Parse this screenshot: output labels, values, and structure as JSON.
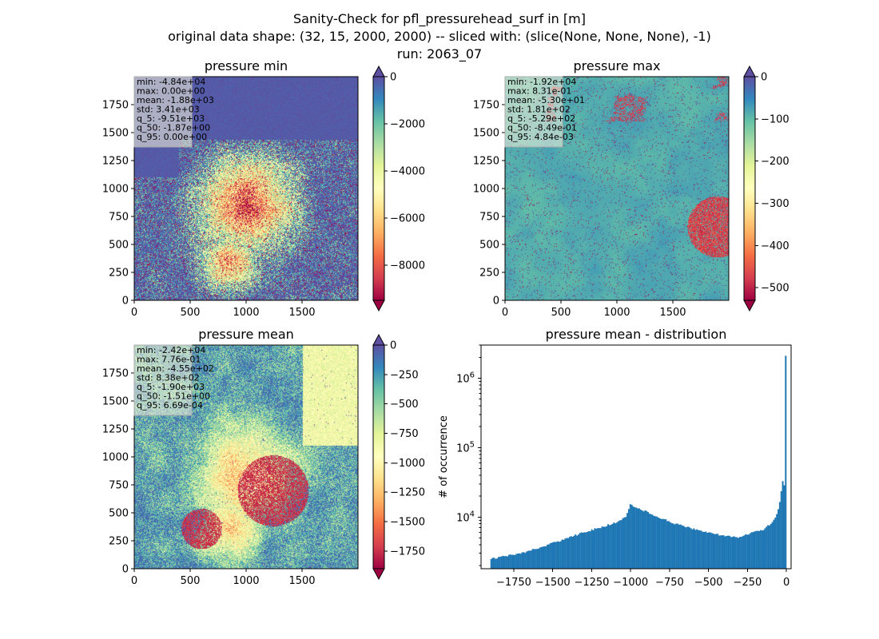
{
  "suptitle": [
    "Sanity-Check for pfl_pressurehead_surf in [m]",
    "original data shape: (32, 15, 2000, 2000) -- sliced with: (slice(None, None, None), -1)",
    "run: 2063_07"
  ],
  "colors": {
    "spectral_low": "#9e0142",
    "spectral_high": "#5e4fa2",
    "hist_bar": "#1f77b4",
    "statbox_bg": "#f5f5dc"
  },
  "chart_data": [
    {
      "type": "heatmap",
      "title": "pressure min",
      "colormap": "Spectral",
      "extend": "both",
      "xlim": [
        0,
        2000
      ],
      "ylim": [
        0,
        2000
      ],
      "x_ticks": [
        "0",
        "500",
        "1000",
        "1500"
      ],
      "y_ticks": [
        "0",
        "250",
        "500",
        "750",
        "1000",
        "1250",
        "1500",
        "1750"
      ],
      "vmin": -9500,
      "vmax": 0,
      "colorbar_ticks": [
        "0",
        "−2000",
        "−4000",
        "−6000",
        "−8000"
      ],
      "colorbar_tick_values": [
        0,
        -2000,
        -4000,
        -6000,
        -8000
      ],
      "stats": [
        "min: -4.84e+04",
        "max: 0.00e+00",
        "mean: -1.88e+03",
        "std: 3.41e+03",
        "q_5: -9.51e+03",
        "q_50: -1.87e+00",
        "q_95: 0.00e+00"
      ]
    },
    {
      "type": "heatmap",
      "title": "pressure max",
      "colormap": "Spectral",
      "extend": "both",
      "xlim": [
        0,
        2000
      ],
      "ylim": [
        0,
        2000
      ],
      "x_ticks": [
        "0",
        "500",
        "1000",
        "1500"
      ],
      "y_ticks": [
        "0",
        "250",
        "500",
        "750",
        "1000",
        "1250",
        "1500",
        "1750"
      ],
      "vmin": -530,
      "vmax": 0,
      "colorbar_ticks": [
        "0",
        "−100",
        "−200",
        "−300",
        "−400",
        "−500"
      ],
      "colorbar_tick_values": [
        0,
        -100,
        -200,
        -300,
        -400,
        -500
      ],
      "stats": [
        "min: -1.92e+04",
        "max: 8.31e-01",
        "mean: -5.30e+01",
        "std: 1.81e+02",
        "q_5: -5.29e+02",
        "q_50: -8.49e-01",
        "q_95: 4.84e-03"
      ]
    },
    {
      "type": "heatmap",
      "title": "pressure mean",
      "colormap": "Spectral",
      "extend": "both",
      "xlim": [
        0,
        2000
      ],
      "ylim": [
        0,
        2000
      ],
      "x_ticks": [
        "0",
        "500",
        "1000",
        "1500"
      ],
      "y_ticks": [
        "0",
        "250",
        "500",
        "750",
        "1000",
        "1250",
        "1500",
        "1750"
      ],
      "vmin": -1900,
      "vmax": 0,
      "colorbar_ticks": [
        "0",
        "−250",
        "−500",
        "−750",
        "−1000",
        "−1250",
        "−1500",
        "−1750"
      ],
      "colorbar_tick_values": [
        0,
        -250,
        -500,
        -750,
        -1000,
        -1250,
        -1500,
        -1750
      ],
      "stats": [
        "min: -2.42e+04",
        "max: 7.76e-01",
        "mean: -4.55e+02",
        "std: 8.38e+02",
        "q_5: -1.90e+03",
        "q_50: -1.51e+00",
        "q_95: 6.69e-04"
      ]
    },
    {
      "type": "bar",
      "title": "pressure mean - distribution",
      "ylabel": "# of occurrence",
      "yscale": "log",
      "xlim": [
        -1960,
        30
      ],
      "ylim": [
        1800,
        3000000
      ],
      "x_ticks": [
        "−1750",
        "−1500",
        "−1250",
        "−1000",
        "−750",
        "−500",
        "−250",
        "0"
      ],
      "x_tick_values": [
        -1750,
        -1500,
        -1250,
        -1000,
        -750,
        -500,
        -250,
        0
      ],
      "y_ticks": [
        "10^4",
        "10^5",
        "10^6"
      ],
      "y_tick_values": [
        10000,
        100000,
        1000000
      ],
      "bin_range": [
        -1900,
        0
      ],
      "profile_x": [
        -1900,
        -1700,
        -1500,
        -1300,
        -1100,
        -1030,
        -1000,
        -980,
        -900,
        -800,
        -700,
        -600,
        -500,
        -400,
        -300,
        -250,
        -150,
        -100,
        -60,
        -40,
        -25,
        -15,
        -8,
        -4,
        -2,
        0
      ],
      "profile_y": [
        2500,
        3000,
        4200,
        6000,
        8200,
        10000,
        16000,
        14000,
        12000,
        9500,
        7800,
        6800,
        6000,
        5300,
        5100,
        5700,
        6500,
        8000,
        11000,
        17000,
        33000,
        30000,
        24000,
        24000,
        25000,
        2100000
      ]
    }
  ]
}
